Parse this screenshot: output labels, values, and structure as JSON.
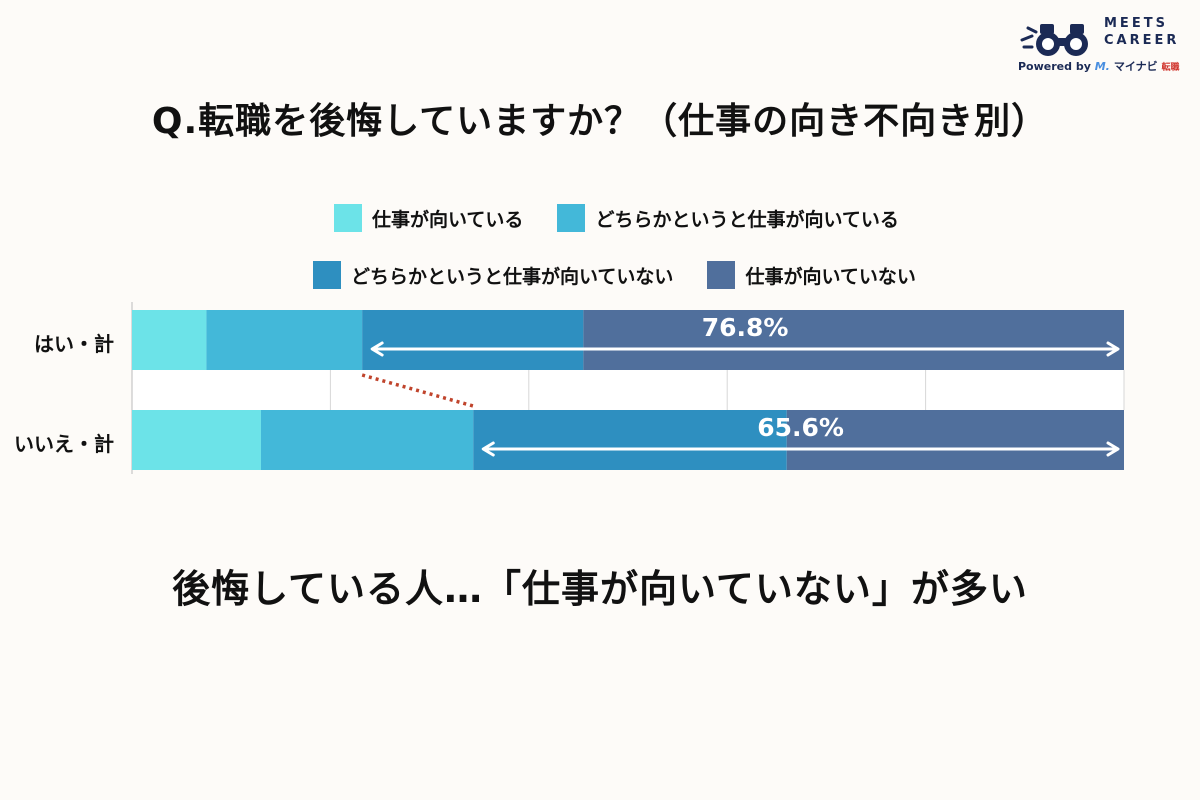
{
  "logo": {
    "line1": "MEETS",
    "line2": "CAREER",
    "powered": "Powered by",
    "brand": "マイナビ",
    "brand_suffix": "転職"
  },
  "title": "Q.転職を後悔していますか？（仕事の向き不向き別）",
  "conclusion": "後悔している人…「仕事が向いていない」が多い",
  "colors": {
    "s1": "#6ce3e8",
    "s2": "#43b8d9",
    "s3": "#2e8fc0",
    "s4": "#506f9c",
    "arrow": "#ffffff",
    "connector": "#c0442c"
  },
  "chart_data": {
    "type": "bar",
    "orientation": "horizontal",
    "stacked": true,
    "normalized": true,
    "categories": [
      "はい・計",
      "いいえ・計"
    ],
    "category_labels": [
      "はい・計",
      "いいえ・計"
    ],
    "series": [
      {
        "name": "仕事が向いている",
        "values": [
          7.5,
          13.0
        ]
      },
      {
        "name": "どちらかというと仕事が向いている",
        "values": [
          15.7,
          21.4
        ]
      },
      {
        "name": "どちらかというと仕事が向いていない",
        "values": [
          22.3,
          31.6
        ]
      },
      {
        "name": "仕事が向いていない",
        "values": [
          54.5,
          34.0
        ]
      }
    ],
    "annotations": [
      {
        "category": "はい・計",
        "text": "76.8%",
        "from_series": 2,
        "to_series": 3
      },
      {
        "category": "いいえ・計",
        "text": "65.6%",
        "from_series": 2,
        "to_series": 3
      }
    ],
    "xlim": [
      0,
      100
    ],
    "grid": true,
    "legend": "top"
  }
}
